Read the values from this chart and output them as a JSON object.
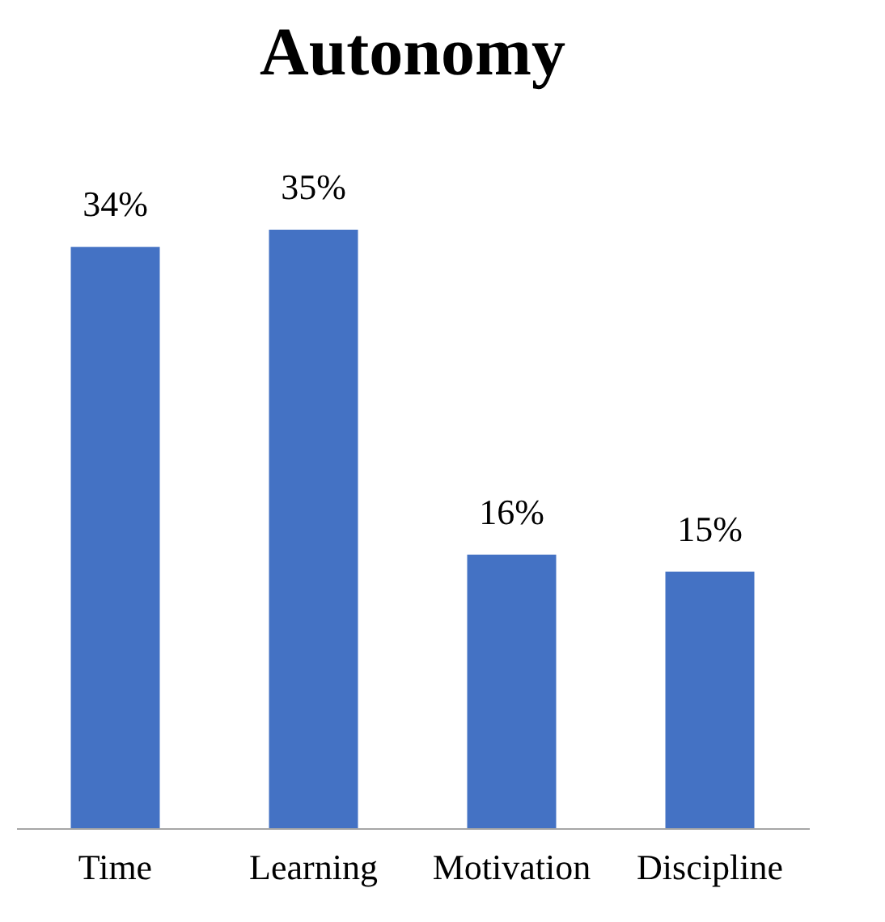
{
  "chart_data": {
    "type": "bar",
    "title": "Autonomy",
    "categories": [
      "Time",
      "Learning",
      "Motivation",
      "Discipline"
    ],
    "values": [
      34,
      35,
      16,
      15
    ],
    "value_labels": [
      "34%",
      "35%",
      "16%",
      "15%"
    ],
    "color": "#4472c4",
    "grid": false
  }
}
